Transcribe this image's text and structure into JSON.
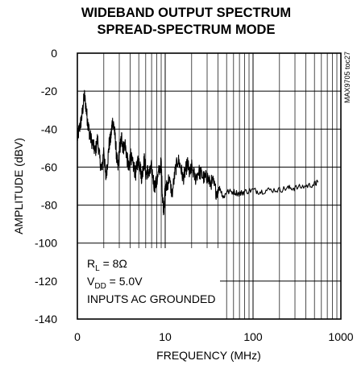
{
  "chart_data": {
    "type": "line",
    "title_lines": [
      "WIDEBAND OUTPUT SPECTRUM",
      "SPREAD-SPECTRUM MODE"
    ],
    "xlabel": "FREQUENCY (MHz)",
    "ylabel": "AMPLITUDE (dBV)",
    "x_scale": "log",
    "xlim": [
      1,
      1000
    ],
    "ylim": [
      -140,
      0
    ],
    "x_tick_labels": [
      "0",
      "10",
      "100",
      "1000"
    ],
    "y_ticks": [
      0,
      -20,
      -40,
      -60,
      -80,
      -100,
      -120,
      -140
    ],
    "y_tick_labels": [
      "0",
      "-20",
      "-40",
      "-60",
      "-80",
      "-100",
      "-120",
      "-140"
    ],
    "grid": true,
    "annotation": {
      "line1_main": "R",
      "line1_sub": "L",
      "line1_rest": " = 8Ω",
      "line2_main": "V",
      "line2_sub": "DD",
      "line2_rest": " = 5.0V",
      "line3": "INPUTS AC GROUNDED"
    },
    "side_id": "MAX9705 toc27",
    "series": [
      {
        "x": [
          1.0,
          1.05,
          1.1,
          1.15,
          1.2,
          1.25,
          1.3,
          1.35,
          1.4,
          1.5,
          1.6,
          1.7,
          1.8,
          1.9,
          2.0,
          2.1,
          2.2,
          2.3,
          2.4,
          2.5,
          2.6,
          2.7,
          2.8,
          2.9,
          3.0,
          3.1,
          3.2,
          3.3,
          3.5,
          3.7,
          3.9,
          4.0,
          4.2,
          4.4,
          4.6,
          4.8,
          5.0,
          5.2,
          5.4,
          5.6,
          5.8,
          6.0,
          6.3,
          6.6,
          7.0,
          7.5,
          8.0,
          8.5,
          9.0,
          9.3,
          9.6,
          10.0,
          10.5,
          11.0,
          12.0,
          13.0,
          14.0,
          15.0,
          16.0,
          17.0,
          18.0,
          19.0,
          20.0,
          22.0,
          24.0,
          26.0,
          28.0,
          30.0,
          32.0,
          35.0,
          38.0,
          42.0,
          46.0,
          50.0,
          60.0,
          70.0,
          80.0,
          100.0,
          120.0,
          150.0,
          200.0,
          250.0,
          300.0,
          400.0,
          500.0,
          550.0
        ],
        "y": [
          -45,
          -40,
          -36,
          -30,
          -22,
          -28,
          -35,
          -40,
          -44,
          -48,
          -52,
          -45,
          -56,
          -62,
          -50,
          -66,
          -58,
          -48,
          -45,
          -36,
          -38,
          -45,
          -55,
          -60,
          -52,
          -48,
          -44,
          -50,
          -48,
          -56,
          -62,
          -52,
          -58,
          -60,
          -64,
          -58,
          -56,
          -60,
          -66,
          -60,
          -56,
          -64,
          -62,
          -64,
          -60,
          -70,
          -68,
          -62,
          -58,
          -75,
          -82,
          -72,
          -70,
          -66,
          -74,
          -62,
          -56,
          -60,
          -66,
          -62,
          -58,
          -64,
          -60,
          -66,
          -62,
          -64,
          -66,
          -65,
          -68,
          -68,
          -73,
          -71,
          -76,
          -73,
          -73,
          -74,
          -73,
          -72,
          -73,
          -72,
          -72,
          -71,
          -71,
          -70,
          -69,
          -68
        ]
      }
    ]
  }
}
